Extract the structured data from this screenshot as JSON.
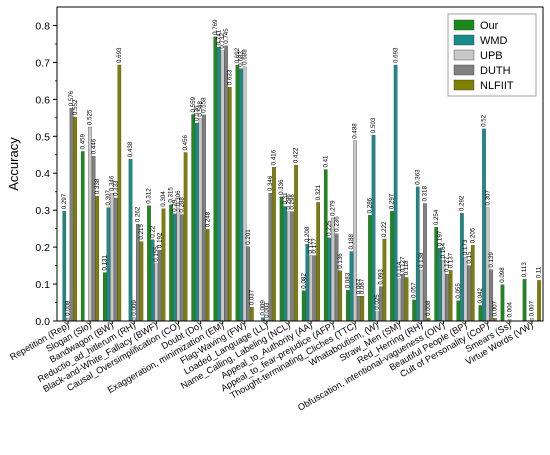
{
  "chart_data": {
    "type": "bar",
    "title": "",
    "xlabel": "",
    "ylabel": "Accuracy",
    "ylim": [
      0,
      0.85
    ],
    "yticks": [
      "0.0",
      "0.1",
      "0.2",
      "0.3",
      "0.4",
      "0.5",
      "0.6",
      "0.7",
      "0.8"
    ],
    "ytick_values": [
      0,
      0.1,
      0.2,
      0.3,
      0.4,
      0.5,
      0.6,
      0.7,
      0.8
    ],
    "grid": false,
    "legend_position": "top-right",
    "categories": [
      "Repetition (Rep)",
      "Slogan (Slo)",
      "Bandwagon (BW)",
      "Reductio_ad_hitlerum (RH)",
      "Black-and-White_Fallacy (BWF)",
      "Causal_Oversimplification (CO)",
      "Doubt (Do)",
      "Exaggeration, minimization (EM)",
      "Flag-Waving (FW)",
      "Loaded_Language (LL)",
      "Name_Calling, Labeling (NCL)",
      "Appeal_to_Authority (AA)",
      "Appeal_to_fear-prejudice (AFP)",
      "Thought-terminating_Cliches (TTC)",
      "Whataboutism, (W)",
      "Straw_Men (SM)",
      "Red_Herring (RH)",
      "Obfuscation, intentional-vagueness (OIV)",
      "Beautiful People (BP)",
      "Cult of Personality (CoP)",
      "Smears (Ss)",
      "Virtue Words (VW)"
    ],
    "series": [
      {
        "name": "Our",
        "color": "#1a8a1a",
        "values": [
          0,
          0.459,
          0.131,
          0,
          0.312,
          0.315,
          0.559,
          0.769,
          0.692,
          0,
          0.336,
          0.082,
          0.41,
          0.083,
          0.286,
          0.297,
          0.057,
          0.254,
          0.055,
          0.042,
          0.098,
          0.113
        ]
      },
      {
        "name": "WMD",
        "color": "#1a8a8a",
        "values": [
          0.297,
          0,
          0.307,
          0.438,
          0.22,
          0.29,
          0.536,
          0.741,
          0.683,
          0.009,
          0.31,
          0.208,
          0.225,
          0.188,
          0.503,
          0.693,
          0.363,
          0.197,
          0.292,
          0.52,
          0,
          0
        ]
      },
      {
        "name": "UPB",
        "color": "#c8c8c8",
        "values": [
          0.008,
          0.525,
          0.346,
          0.009,
          0.155,
          0.306,
          0.548,
          0.732,
          0.688,
          0.003,
          0.296,
          0.177,
          0.279,
          0.488,
          0.025,
          0.114,
          0.138,
          0.164,
          0.173,
          0.307,
          0.004,
          0.007
        ]
      },
      {
        "name": "DUTH",
        "color": "#808080",
        "values": [
          0.576,
          0.446,
          0.333,
          0.262,
          0.192,
          0.288,
          0.558,
          0.745,
          0.201,
          0.346,
          0.296,
          0.177,
          0.236,
          0.067,
          0.093,
          0.127,
          0.318,
          0.127,
          0.15,
          0.139,
          0,
          0
        ]
      },
      {
        "name": "NLFIIT",
        "color": "#808000",
        "values": [
          0.552,
          0.338,
          0.693,
          0.215,
          0.304,
          0.456,
          0.248,
          0.633,
          0.037,
          0.416,
          0.422,
          0.321,
          0.136,
          0.067,
          0.222,
          0.118,
          0.008,
          0.137,
          0.205,
          0.007,
          0,
          0.11
        ]
      }
    ],
    "data_labels": [
      [
        "",
        "0.459",
        "0.131",
        "",
        "0.312",
        "0.315",
        "0.559",
        "0.769",
        "0.692",
        "",
        "0.336",
        "0.082",
        "0.41",
        "0.083",
        "0.286",
        "0.297",
        "0.057",
        "0.254",
        "0.055",
        "0.042",
        "0.098",
        "0.113"
      ],
      [
        "0.297",
        "",
        "0.307",
        "0.438",
        "0.22",
        "0.29",
        "0.536",
        "0.741",
        "0.683",
        "0.009",
        "0.31",
        "0.208",
        "0.225",
        "0.188",
        "0.503",
        "0.693",
        "0.363",
        "0.197",
        "0.292",
        "0.52",
        "",
        ""
      ],
      [
        "0.008",
        "0.525",
        "0.346",
        "0.009",
        "0.155",
        "0.306",
        "0.548",
        "0.732",
        "0.688",
        "0.003",
        "0.296",
        "0.177",
        "0.279",
        "0.488",
        "0.025",
        "0.114",
        "0.138",
        "0.164",
        "0.173",
        "0.307",
        "0.004",
        "0.007"
      ],
      [
        "0.576",
        "0.446",
        "0.333",
        "0.262",
        "0.192",
        "0.288",
        "0.558",
        "0.745",
        "0.201",
        "0.346",
        "0.296",
        "0.177",
        "0.236",
        "0.067",
        "0.093",
        "0.127",
        "0.318",
        "0.127",
        "0.15",
        "0.139",
        "",
        ""
      ],
      [
        "0.552",
        "0.338",
        "0.693",
        "0.215",
        "0.304",
        "0.456",
        "0.248",
        "0.633",
        "0.037",
        "0.416",
        "0.422",
        "0.321",
        "0.136",
        "0.067",
        "0.222",
        "0.118",
        "0.008",
        "0.137",
        "0.205",
        "0.007",
        "",
        "0.11"
      ]
    ]
  }
}
